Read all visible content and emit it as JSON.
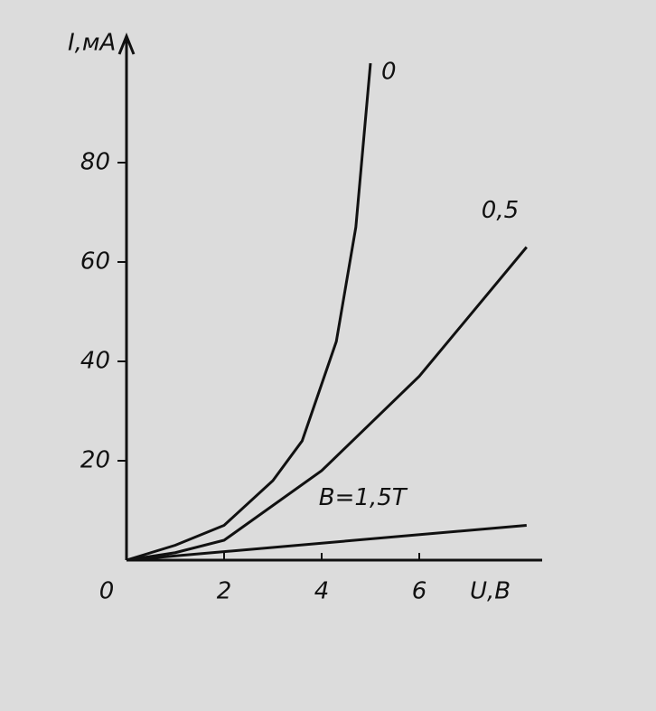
{
  "chart_data": {
    "type": "line",
    "x_label": "U,B",
    "y_label": "I,мА",
    "xlim": [
      0,
      8.5
    ],
    "ylim": [
      0,
      105
    ],
    "xticks": [
      0,
      2,
      4,
      6
    ],
    "yticks": [
      20,
      40,
      60,
      80
    ],
    "grid": false,
    "series": [
      {
        "name": "0",
        "color": "#111111",
        "x": [
          0,
          1,
          2,
          3,
          3.6,
          4.3,
          4.7,
          5
        ],
        "values": [
          0,
          3,
          7,
          16,
          24,
          44,
          67,
          100
        ]
      },
      {
        "name": "0,5",
        "color": "#111111",
        "x": [
          0,
          1,
          2,
          4,
          6,
          8.2
        ],
        "values": [
          0,
          1.5,
          4,
          18,
          37,
          63
        ]
      },
      {
        "name": "B=1,5T",
        "color": "#111111",
        "x": [
          0,
          8.2
        ],
        "values": [
          0,
          7
        ]
      }
    ]
  }
}
